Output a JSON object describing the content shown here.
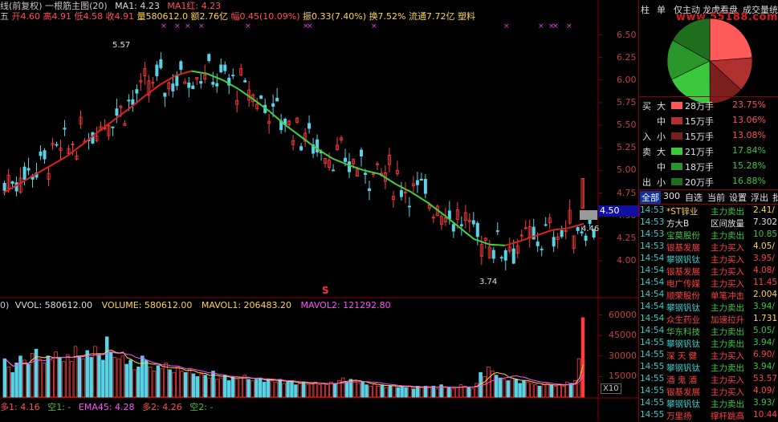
{
  "header": {
    "title_prefix": "线(前复权) 一根筋主图(20)",
    "ma1": "MA1: 4.23",
    "ma1_red": "MA1红: 4.23",
    "info_label_prefix": "五",
    "open": "开4.60",
    "high": "高4.91",
    "low": "低4.58",
    "close": "收4.91",
    "volume": "量580612.0",
    "amount": "额2.76亿",
    "pct_change": "幅0.45(10.09%)",
    "amplitude": "振0.33(7.40%)",
    "turnover": "换7.52%",
    "float_cap": "流通7.72亿",
    "sector": "塑料"
  },
  "price_axis": {
    "ticks": [
      "6.50",
      "6.25",
      "6.00",
      "5.75",
      "5.50",
      "5.25",
      "5.00",
      "4.75",
      "4.50",
      "4.25",
      "4.00"
    ],
    "current_price_box": "4.50",
    "marker_high": "5.57",
    "marker_low": "3.74",
    "marker_right": "4.46",
    "signal_marker": "S"
  },
  "volume_panel": {
    "label_prefix": "0)",
    "vvol": "VVOL: 580612.00",
    "volume": "VOLUME: 580612.00",
    "mavol1": "MAVOL1: 206483.20",
    "mavol2": "MAVOL2: 121292.80",
    "ticks": [
      "60000",
      "45000",
      "30000",
      "15000"
    ],
    "unit": "X10"
  },
  "bottom_indicator": {
    "duo1": "多1: 4.16",
    "kong1": "空1: -",
    "ema45": "EMA45: 4.28",
    "duo2": "多2: 4.26",
    "kong2": "空2: -"
  },
  "right_panel": {
    "tabs": [
      "柱",
      "单",
      "仅主动",
      "龙虎看盘",
      "成交量统"
    ],
    "watermark": "www.55188.com",
    "flows": [
      {
        "side": "买",
        "size": "大",
        "hand": "28万手",
        "pct": "23.75%",
        "color": "#ff5a5a"
      },
      {
        "side": "",
        "size": "中",
        "hand": "15万手",
        "pct": "13.06%",
        "color": "#b03030"
      },
      {
        "side": "入",
        "size": "小",
        "hand": "15万手",
        "pct": "13.08%",
        "color": "#7a1e1e"
      },
      {
        "side": "卖",
        "size": "大",
        "hand": "21万手",
        "pct": "17.84%",
        "color": "#3cc83c"
      },
      {
        "side": "",
        "size": "中",
        "hand": "18万手",
        "pct": "15.28%",
        "color": "#2a962a"
      },
      {
        "side": "出",
        "size": "小",
        "hand": "20万手",
        "pct": "16.88%",
        "color": "#1e6e1e"
      }
    ],
    "cat_tabs": [
      "全部",
      "300",
      "自选",
      "当前",
      "设置",
      "浮出",
      "批"
    ],
    "ticks": [
      {
        "time": "14:53",
        "name": "*ST锌业",
        "action": "主力卖出",
        "value": "2.41/",
        "name_color": "#ffd24a",
        "action_color": "#3cc83c",
        "value_color": "#ffd24a"
      },
      {
        "time": "14:53",
        "name": "方大B",
        "action": "区间放量",
        "value": "7.302",
        "name_color": "#e0e0e0",
        "action_color": "#e0e0e0",
        "value_color": "#e0e0e0"
      },
      {
        "time": "14:53",
        "name": "宝莫股份",
        "action": "主力卖出",
        "value": "10.85",
        "name_color": "#3cc83c",
        "action_color": "#3cc83c",
        "value_color": "#3cc83c"
      },
      {
        "time": "14:53",
        "name": "银基发展",
        "action": "主力买入",
        "value": "4.05/",
        "name_color": "#ff4040",
        "action_color": "#ff4040",
        "value_color": "#ffd24a"
      },
      {
        "time": "14:54",
        "name": "攀钢钒钛",
        "action": "主力买入",
        "value": "3.95/",
        "name_color": "#3cc8c8",
        "action_color": "#ff4040",
        "value_color": "#ff4040"
      },
      {
        "time": "14:54",
        "name": "银基发展",
        "action": "主力买入",
        "value": "4.08/",
        "name_color": "#ff4040",
        "action_color": "#ff4040",
        "value_color": "#ff4040"
      },
      {
        "time": "14:54",
        "name": "电广传媒",
        "action": "主力买入",
        "value": "11.45",
        "name_color": "#ff4040",
        "action_color": "#ff4040",
        "value_color": "#ff4040"
      },
      {
        "time": "14:54",
        "name": "顺荣股份",
        "action": "单笔冲击",
        "value": "2.004",
        "name_color": "#ff4040",
        "action_color": "#ff4040",
        "value_color": "#ffd24a"
      },
      {
        "time": "14:54",
        "name": "攀钢钒钛",
        "action": "主力卖出",
        "value": "3.94/",
        "name_color": "#3cc8c8",
        "action_color": "#3cc83c",
        "value_color": "#3cc83c"
      },
      {
        "time": "14:54",
        "name": "众生药业",
        "action": "加速拉升",
        "value": "1.731",
        "name_color": "#ff4040",
        "action_color": "#ff4040",
        "value_color": "#ffd24a"
      },
      {
        "time": "14:54",
        "name": "华东科技",
        "action": "主力卖出",
        "value": "5.05/",
        "name_color": "#3cc83c",
        "action_color": "#3cc83c",
        "value_color": "#3cc83c"
      },
      {
        "time": "14:55",
        "name": "攀钢钒钛",
        "action": "主力卖出",
        "value": "3.94/",
        "name_color": "#3cc8c8",
        "action_color": "#3cc83c",
        "value_color": "#3cc83c"
      },
      {
        "time": "14:55",
        "name": "深 天 健",
        "action": "主力买入",
        "value": "6.90/",
        "name_color": "#ff4040",
        "action_color": "#ff4040",
        "value_color": "#ff4040"
      },
      {
        "time": "14:55",
        "name": "攀钢钒钛",
        "action": "主力卖出",
        "value": "3.94/",
        "name_color": "#3cc8c8",
        "action_color": "#3cc83c",
        "value_color": "#3cc83c"
      },
      {
        "time": "14:55",
        "name": "酒 鬼 酒",
        "action": "主力买入",
        "value": "53.57",
        "name_color": "#ff4040",
        "action_color": "#ff4040",
        "value_color": "#ff4040"
      },
      {
        "time": "14:55",
        "name": "银基发展",
        "action": "主力买入",
        "value": "4.09/",
        "name_color": "#ff4040",
        "action_color": "#ff4040",
        "value_color": "#ff4040"
      },
      {
        "time": "14:55",
        "name": "攀钢钒钛",
        "action": "主力卖出",
        "value": "3.93/",
        "name_color": "#3cc8c8",
        "action_color": "#3cc83c",
        "value_color": "#3cc83c"
      },
      {
        "time": "14:55",
        "name": "万里扬",
        "action": "撑杆跳高",
        "value": "10.44",
        "name_color": "#ff4040",
        "action_color": "#ff4040",
        "value_color": "#ff4040"
      }
    ]
  },
  "chart_data": [
    {
      "type": "candlestick",
      "ylim": [
        3.6,
        6.62
      ],
      "ma_line": [
        4.75,
        4.85,
        4.95,
        5.05,
        5.15,
        5.28,
        5.42,
        5.55,
        5.68,
        5.82,
        5.95,
        6.05,
        6.1,
        6.07,
        6.0,
        5.9,
        5.78,
        5.65,
        5.5,
        5.37,
        5.24,
        5.13,
        5.06,
        5.0,
        4.96,
        4.85,
        4.76,
        4.65,
        4.52,
        4.38,
        4.24,
        4.18,
        4.17,
        4.22,
        4.28,
        4.34,
        4.36,
        4.41
      ]
    },
    {
      "type": "bar",
      "ylim": [
        0,
        65000
      ],
      "vol_values": [
        28000,
        22000,
        18000,
        25000,
        30000,
        27000,
        24000,
        32000,
        35000,
        28000,
        25000,
        30000,
        27000,
        33000,
        29000,
        26000,
        31000,
        26000,
        37000,
        30000,
        28000,
        34000,
        29000,
        37000,
        31000,
        27000,
        44000,
        33000,
        29000,
        28000,
        30000,
        24000,
        27000,
        20000,
        22000,
        30000,
        27000,
        22000,
        19000,
        23000,
        21000,
        25000,
        20000,
        18000,
        22000,
        19000,
        18000,
        21000,
        17000,
        15000,
        17000,
        16000,
        14000,
        19000,
        13000,
        14000,
        16000,
        12000,
        15000,
        13000,
        14000,
        16000,
        13000,
        12000,
        13000,
        14000,
        11000,
        13000,
        12000,
        11000,
        13000,
        10000,
        11000,
        12000,
        9000,
        10000,
        11000,
        9000,
        10000,
        11000,
        9000,
        10000,
        9000,
        11000,
        10000,
        12000,
        14000,
        11000,
        13000,
        12000,
        10000,
        11000,
        9000,
        8000,
        10000,
        8000,
        9000,
        7000,
        8000,
        9000,
        7000,
        8000,
        7000,
        8000,
        6000,
        8000,
        7000,
        8000,
        7000,
        8000,
        6000,
        9000,
        7000,
        7000,
        6000,
        7000,
        9000,
        8000,
        7000,
        6000,
        10000,
        18000,
        15000,
        22000,
        19000,
        16000,
        14000,
        13000,
        12000,
        14000,
        13000,
        10000,
        12000,
        11000,
        10000,
        9000,
        8000,
        9000,
        10000,
        9000,
        8000,
        9000,
        8000,
        11000,
        10000,
        12000,
        28000,
        58062
      ],
      "mavol1": "206483.20",
      "mavol2": "121292.80"
    },
    {
      "type": "pie",
      "labels": [
        "28万手",
        "15万手",
        "15万手",
        "21万手",
        "18万手",
        "20万手"
      ],
      "values": [
        23.75,
        13.06,
        13.08,
        17.84,
        15.28,
        16.88
      ]
    }
  ]
}
